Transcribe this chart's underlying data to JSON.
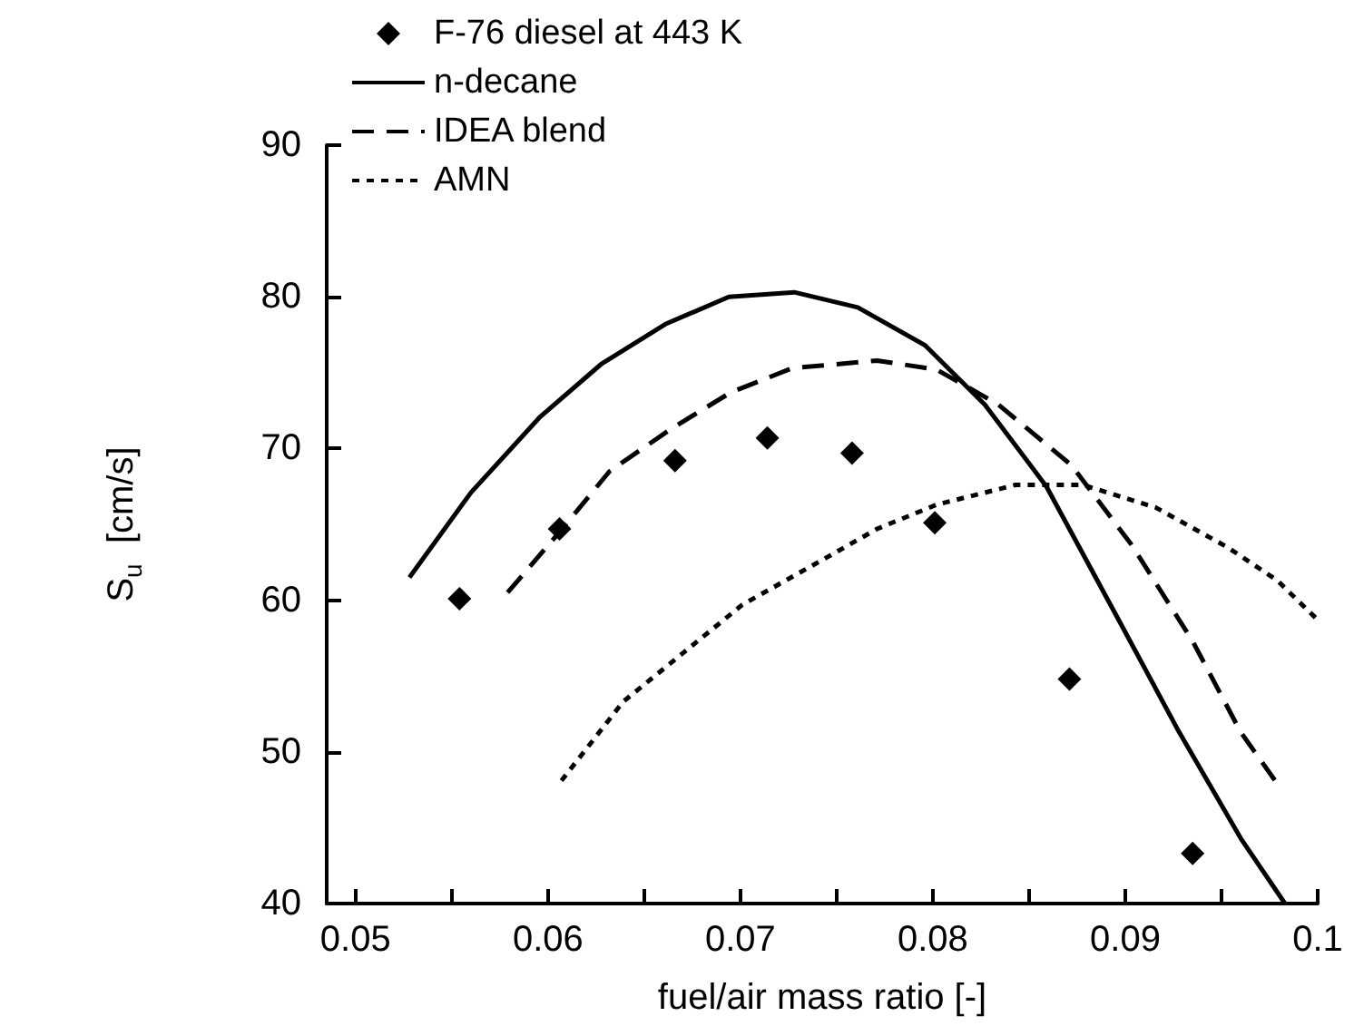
{
  "chart_data": {
    "type": "line",
    "xlabel": "fuel/air mass ratio [-]",
    "ylabel": "S$_{u}$  [cm/s]",
    "xlim": [
      0.0485,
      0.1
    ],
    "ylim": [
      40,
      90
    ],
    "xticks": [
      0.05,
      {
        "value": 0.055,
        "label": null
      },
      0.06,
      {
        "value": 0.065,
        "label": null
      },
      0.07,
      {
        "value": 0.075,
        "label": null
      },
      0.08,
      {
        "value": 0.085,
        "label": null
      },
      0.09,
      {
        "value": 0.095,
        "label": null
      },
      0.1
    ],
    "yticks": [
      40,
      50,
      60,
      70,
      80,
      90
    ],
    "grid": false,
    "legend": "top left",
    "series": [
      {
        "name": "F-76 diesel at 443 K",
        "type": "scatter",
        "marker": "diamond",
        "color": "#000000",
        "x": [
          0.0554,
          0.0606,
          0.0666,
          0.0714,
          0.0758,
          0.0801,
          0.0871,
          0.0935
        ],
        "values": [
          60.1,
          64.7,
          69.2,
          70.7,
          69.7,
          65.1,
          54.8,
          43.3
        ]
      },
      {
        "name": "n-decane",
        "type": "line",
        "line_style": "solid",
        "color": "#000000",
        "x": [
          0.0528,
          0.056,
          0.0596,
          0.0628,
          0.0661,
          0.0694,
          0.0728,
          0.0761,
          0.0796,
          0.0827,
          0.0859,
          0.0894,
          0.0928,
          0.096,
          0.0983
        ],
        "values": [
          61.5,
          67.1,
          72.1,
          75.6,
          78.2,
          80.0,
          80.3,
          79.3,
          76.8,
          72.9,
          67.5,
          59.3,
          51.3,
          44.3,
          40
        ]
      },
      {
        "name": "IDEA blend",
        "type": "line",
        "line_style": "dashed",
        "color": "#000000",
        "x": [
          0.0579,
          0.0606,
          0.0632,
          0.0664,
          0.0695,
          0.0727,
          0.0771,
          0.0802,
          0.0834,
          0.0872,
          0.0903,
          0.0935,
          0.096,
          0.0979
        ],
        "values": [
          60.5,
          64.5,
          68.5,
          71.3,
          73.7,
          75.3,
          75.8,
          75.2,
          72.9,
          68.9,
          63.7,
          57.3,
          51.3,
          47.9
        ]
      },
      {
        "name": "AMN",
        "type": "line",
        "line_style": "dotted",
        "color": "#000000",
        "x": [
          0.0607,
          0.0639,
          0.067,
          0.0701,
          0.0746,
          0.0771,
          0.0802,
          0.0843,
          0.0878,
          0.0916,
          0.0953,
          0.0979,
          0.1
        ],
        "values": [
          48.1,
          53.3,
          56.5,
          59.7,
          62.9,
          64.7,
          66.3,
          67.6,
          67.6,
          66.1,
          63.5,
          61.3,
          58.7
        ]
      }
    ]
  }
}
